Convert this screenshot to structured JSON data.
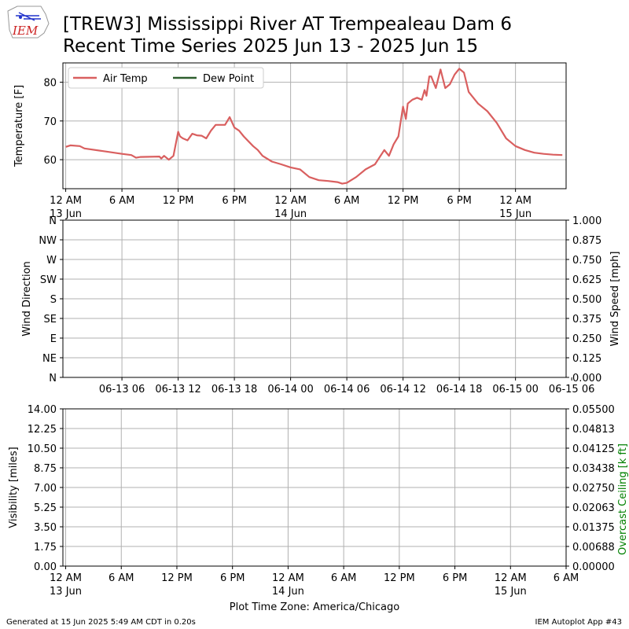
{
  "header": {
    "logo_text": "IEM",
    "title_line1": "[TREW3] Mississippi River  AT Trempealeau Dam 6",
    "title_line2": "Recent Time Series 2025 Jun 13 - 2025 Jun 15"
  },
  "footer": {
    "generated": "Generated at 15 Jun 2025 5:49 AM CDT in 0.20s",
    "app": "IEM Autoplot App #43",
    "timezone": "Plot Time Zone: America/Chicago"
  },
  "colors": {
    "air_temp": "#d95f5f",
    "dew_point": "#2e5e2e",
    "ceiling_label": "#008000",
    "grid": "#b0b0b0"
  },
  "chart_data": [
    {
      "type": "line",
      "name": "temperature-panel",
      "ylabel": "Temperature [F]",
      "ylim": [
        52.5,
        85
      ],
      "xlim_hours": [
        -0.3,
        53.4
      ],
      "x_unit": "hours since 13 Jun 12 AM",
      "yticks": [
        60,
        70,
        80
      ],
      "xticks": [
        {
          "h": 0,
          "label": "12 AM",
          "sub": "13 Jun"
        },
        {
          "h": 6,
          "label": "6 AM",
          "sub": ""
        },
        {
          "h": 12,
          "label": "12 PM",
          "sub": ""
        },
        {
          "h": 18,
          "label": "6 PM",
          "sub": ""
        },
        {
          "h": 24,
          "label": "12 AM",
          "sub": "14 Jun"
        },
        {
          "h": 30,
          "label": "6 AM",
          "sub": ""
        },
        {
          "h": 36,
          "label": "12 PM",
          "sub": ""
        },
        {
          "h": 42,
          "label": "6 PM",
          "sub": ""
        },
        {
          "h": 48,
          "label": "12 AM",
          "sub": "15 Jun"
        }
      ],
      "grid": true,
      "legend": {
        "placement": "top-left",
        "entries": [
          "Air Temp",
          "Dew Point"
        ]
      },
      "series": [
        {
          "name": "Air Temp",
          "x": [
            0,
            0.5,
            1.5,
            2,
            4,
            6,
            7,
            7.5,
            8,
            10,
            10.2,
            10.5,
            11,
            11.5,
            12,
            12.2,
            12.5,
            13,
            13.5,
            14,
            14.5,
            15,
            15.5,
            16,
            17,
            17.5,
            18,
            18.5,
            19,
            20,
            20.5,
            21,
            22,
            23,
            24,
            25,
            26,
            27,
            28,
            29,
            29.5,
            30,
            31,
            32,
            33,
            34,
            34.5,
            35,
            35.5,
            36,
            36.3,
            36.5,
            37,
            37.5,
            38,
            38.3,
            38.5,
            38.8,
            39,
            39.5,
            40,
            40.5,
            41,
            41.3,
            41.5,
            42,
            42.5,
            43,
            44,
            45,
            46,
            47,
            48,
            49,
            50,
            51,
            52,
            53
          ],
          "y": [
            63.3,
            63.7,
            63.5,
            62.9,
            62.2,
            61.5,
            61.2,
            60.5,
            60.7,
            60.8,
            60.3,
            61,
            60,
            61,
            67.2,
            66,
            65.5,
            65,
            66.7,
            66.3,
            66.2,
            65.5,
            67.5,
            69,
            69,
            71,
            68.3,
            67.5,
            66,
            63.5,
            62.5,
            61,
            59.5,
            58.8,
            58,
            57.5,
            55.5,
            54.7,
            54.5,
            54.2,
            53.8,
            54,
            55.5,
            57.5,
            58.8,
            62.5,
            61,
            64,
            66,
            73.7,
            70.5,
            74.5,
            75.5,
            76,
            75.5,
            78,
            76.5,
            81.5,
            81.5,
            78.5,
            83.3,
            78.5,
            79.5,
            81,
            82,
            83.5,
            82.5,
            77.5,
            74.5,
            72.5,
            69.5,
            65.5,
            63.5,
            62.5,
            61.8,
            61.5,
            61.3,
            61.2
          ]
        },
        {
          "name": "Dew Point",
          "x": [],
          "y": []
        }
      ]
    },
    {
      "type": "line",
      "name": "wind-panel",
      "ylabel_left": "Wind Direction",
      "ylabel_right": "Wind Speed [mph]",
      "yticks_left": [
        "N",
        "NE",
        "E",
        "SE",
        "S",
        "SW",
        "W",
        "NW",
        "N"
      ],
      "yticks_right": [
        "0.000",
        "0.125",
        "0.250",
        "0.375",
        "0.500",
        "0.625",
        "0.750",
        "0.875",
        "1.000"
      ],
      "ylim_right": [
        0,
        1
      ],
      "xlim_hours": [
        -0.3,
        53.4
      ],
      "xticks": [
        {
          "h": 6,
          "label": "06-13 06"
        },
        {
          "h": 12,
          "label": "06-13 12"
        },
        {
          "h": 18,
          "label": "06-13 18"
        },
        {
          "h": 24,
          "label": "06-14 00"
        },
        {
          "h": 30,
          "label": "06-14 06"
        },
        {
          "h": 36,
          "label": "06-14 12"
        },
        {
          "h": 42,
          "label": "06-14 18"
        },
        {
          "h": 48,
          "label": "06-15 00"
        },
        {
          "h": 54,
          "label": "06-15 06"
        }
      ],
      "grid": true,
      "series": []
    },
    {
      "type": "line",
      "name": "visibility-panel",
      "ylabel_left": "Visibility [miles]",
      "ylabel_right": "Overcast Ceiling [k ft]",
      "yticks_left": [
        "0.00",
        "1.75",
        "3.50",
        "5.25",
        "7.00",
        "8.75",
        "10.50",
        "12.25",
        "14.00"
      ],
      "yticks_right": [
        "0.00000",
        "0.00688",
        "0.01375",
        "0.02063",
        "0.02750",
        "0.03438",
        "0.04125",
        "0.04813",
        "0.05500"
      ],
      "ylim_left": [
        0,
        14
      ],
      "ylim_right": [
        0,
        0.055
      ],
      "xlim_hours": [
        -0.3,
        54
      ],
      "xticks": [
        {
          "h": 0,
          "label": "12 AM",
          "sub": "13 Jun"
        },
        {
          "h": 6,
          "label": "6 AM",
          "sub": ""
        },
        {
          "h": 12,
          "label": "12 PM",
          "sub": ""
        },
        {
          "h": 18,
          "label": "6 PM",
          "sub": ""
        },
        {
          "h": 24,
          "label": "12 AM",
          "sub": "14 Jun"
        },
        {
          "h": 30,
          "label": "6 AM",
          "sub": ""
        },
        {
          "h": 36,
          "label": "12 PM",
          "sub": ""
        },
        {
          "h": 42,
          "label": "6 PM",
          "sub": ""
        },
        {
          "h": 48,
          "label": "12 AM",
          "sub": "15 Jun"
        },
        {
          "h": 54,
          "label": "6 AM",
          "sub": ""
        }
      ],
      "grid": true,
      "series": []
    }
  ]
}
